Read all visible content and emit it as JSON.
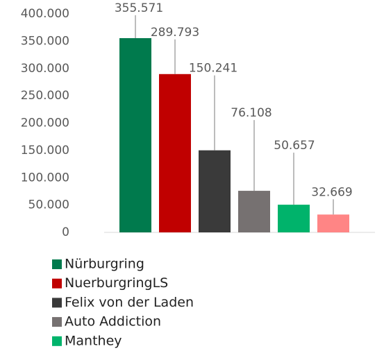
{
  "chart_data": {
    "type": "bar",
    "categories": [
      "Nürburgring",
      "NuerburgringLS",
      "Felix von der Laden",
      "Auto Addiction",
      "Manthey",
      null
    ],
    "values": [
      355571,
      289793,
      150241,
      76108,
      50657,
      32669
    ],
    "value_labels": [
      "355.571",
      "289.793",
      "150.241",
      "76.108",
      "50.657",
      "32.669"
    ],
    "colors": [
      "#007a4d",
      "#c00000",
      "#3a3a3a",
      "#767171",
      "#00b36b",
      "#ff8585"
    ],
    "ylim": [
      0,
      400000
    ],
    "yticks": [
      0,
      {
        "value": 50000,
        "label": "50.000"
      },
      {
        "value": 100000,
        "label": "100.000"
      },
      {
        "value": 150000,
        "label": "150.000"
      },
      {
        "value": 200000,
        "label": "200.000"
      },
      {
        "value": 250000,
        "label": "250.000"
      },
      {
        "value": 300000,
        "label": "300.000"
      },
      {
        "value": 350000,
        "label": "350.000"
      },
      {
        "value": 400000,
        "label": "400.000"
      }
    ],
    "grid": false
  }
}
